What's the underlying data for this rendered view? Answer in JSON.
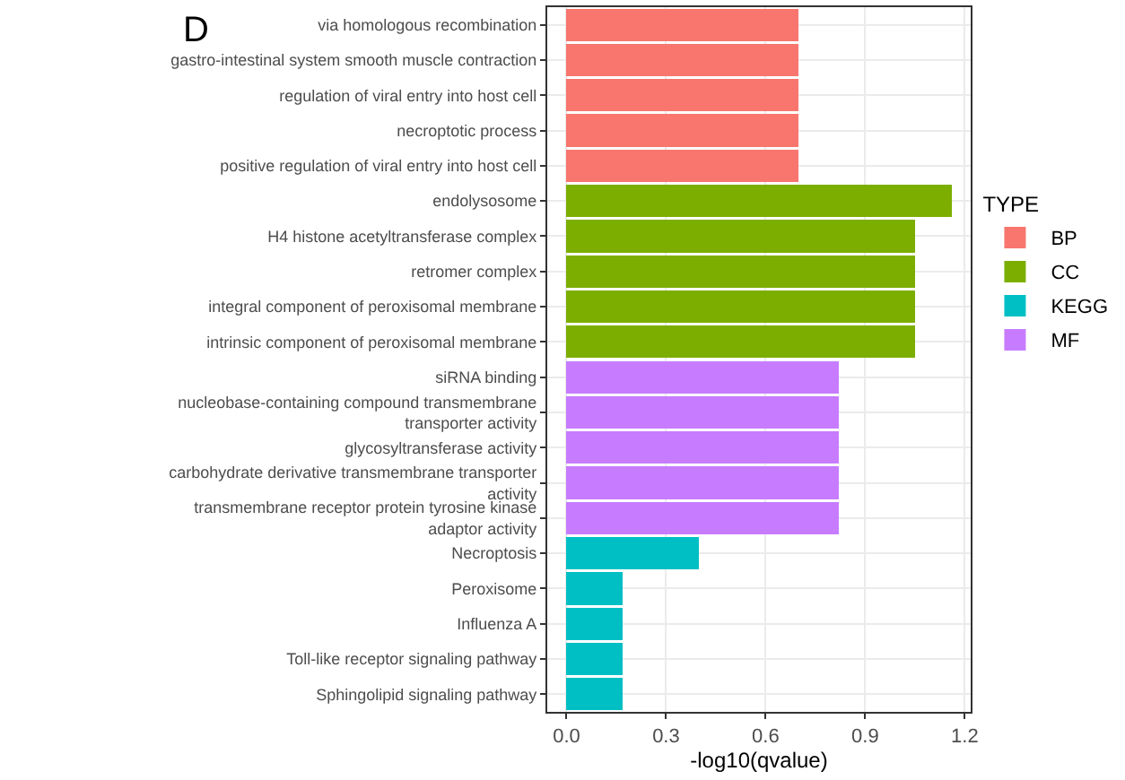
{
  "chart_data": {
    "type": "bar",
    "orientation": "horizontal",
    "stacked": true,
    "title": "D",
    "xlabel": "-log10(qvalue)",
    "legend_title": "TYPE",
    "legend": "right",
    "grid": true,
    "categories": [
      "via homologous recombination",
      "gastro-intestinal system smooth muscle contraction",
      "regulation of viral entry into host cell",
      "necroptotic process",
      "positive regulation of viral entry into host cell",
      "endolysosome",
      "H4 histone acetyltransferase complex",
      "retromer complex",
      "integral component of peroxisomal membrane",
      "intrinsic component of peroxisomal membrane",
      "siRNA binding",
      "nucleobase-containing compound transmembrane\ntransporter activity",
      "glycosyltransferase activity",
      "carbohydrate derivative transmembrane transporter\nactivity",
      "transmembrane receptor protein tyrosine kinase\nadaptor activity",
      "Necroptosis",
      "Peroxisome",
      "Influenza A",
      "Toll-like receptor signaling pathway",
      "Sphingolipid signaling pathway"
    ],
    "series": [
      {
        "name": "BP",
        "color": "#f8766d",
        "values": [
          0.7,
          0.7,
          0.7,
          0.7,
          0.7,
          null,
          null,
          null,
          null,
          null,
          null,
          null,
          null,
          null,
          null,
          null,
          null,
          null,
          null,
          null
        ]
      },
      {
        "name": "CC",
        "color": "#7cae00",
        "values": [
          null,
          null,
          null,
          null,
          null,
          1.16,
          1.05,
          1.05,
          1.05,
          1.05,
          null,
          null,
          null,
          null,
          null,
          null,
          null,
          null,
          null,
          null
        ]
      },
      {
        "name": "KEGG",
        "color": "#00bfc4",
        "values": [
          null,
          null,
          null,
          null,
          null,
          null,
          null,
          null,
          null,
          null,
          null,
          null,
          null,
          null,
          null,
          0.4,
          0.17,
          0.17,
          0.17,
          0.17
        ]
      },
      {
        "name": "MF",
        "color": "#c77cff",
        "values": [
          null,
          null,
          null,
          null,
          null,
          null,
          null,
          null,
          null,
          null,
          0.82,
          0.82,
          0.82,
          0.82,
          0.82,
          null,
          null,
          null,
          null,
          null
        ]
      }
    ],
    "xlim": [
      -0.058,
      1.218
    ],
    "xticks": [
      {
        "value": 0,
        "label": "0.0"
      },
      0.3,
      0.6,
      0.9,
      1.2
    ]
  }
}
